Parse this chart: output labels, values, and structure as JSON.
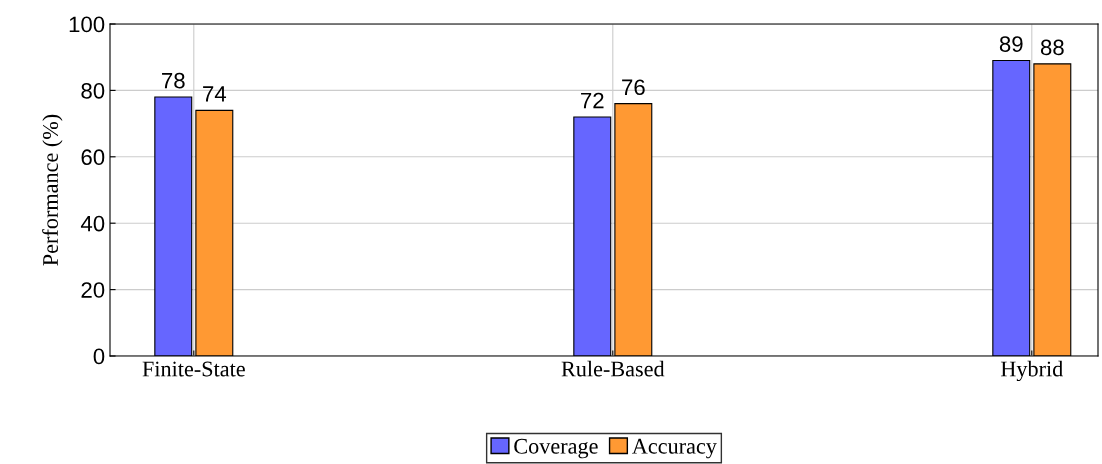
{
  "chart_data": {
    "type": "bar",
    "ylabel": "Performance (%)",
    "categories": [
      "Finite-State",
      "Rule-Based",
      "Hybrid"
    ],
    "series": [
      {
        "name": "Coverage",
        "color": "#6666ff",
        "values": [
          78,
          72,
          89
        ]
      },
      {
        "name": "Accuracy",
        "color": "#ff9933",
        "values": [
          74,
          76,
          88
        ]
      }
    ],
    "ylim": [
      0,
      100
    ],
    "yticks": [
      0,
      20,
      40,
      60,
      80,
      100
    ],
    "grid": true,
    "legend": "bottom",
    "data_labels": true
  }
}
